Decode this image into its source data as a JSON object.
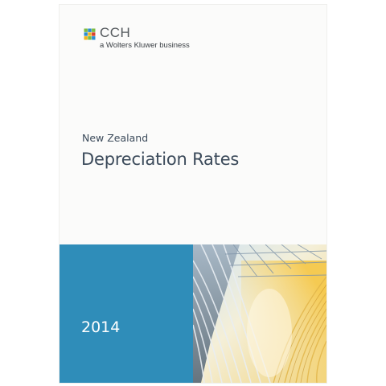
{
  "brand": {
    "name": "CCH",
    "tagline": "a Wolters Kluwer business",
    "logo_icon": "cch-mosaic-logo-icon",
    "logo_colors": [
      "#7dbb42",
      "#2e8ecf",
      "#f2b61f",
      "#d8432e"
    ]
  },
  "cover": {
    "subtitle": "New Zealand",
    "title": "Depreciation Rates",
    "year": "2014",
    "band_color": "#2f8db9",
    "photo_icon": "architecture-canopy-image"
  }
}
